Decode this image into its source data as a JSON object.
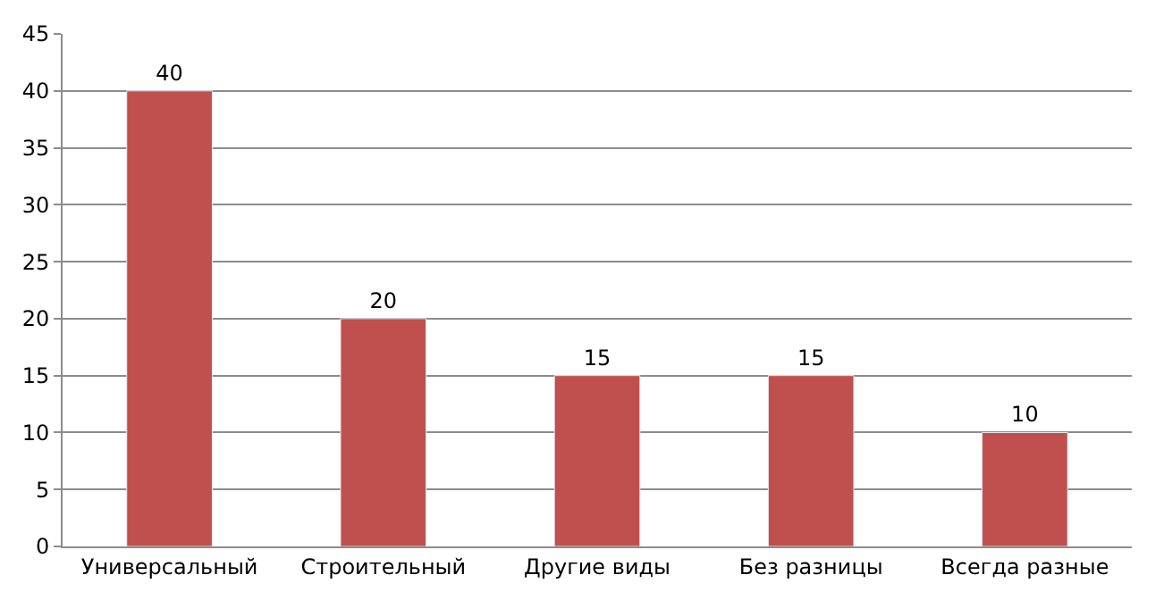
{
  "chart_data": {
    "type": "bar",
    "categories": [
      "Универсальный",
      "Строительный",
      "Другие виды",
      "Без разницы",
      "Всегда разные"
    ],
    "values": [
      40,
      20,
      15,
      15,
      10
    ],
    "color": "#c0504d",
    "ylim": [
      0,
      45
    ],
    "yticks": [
      0,
      5,
      10,
      15,
      20,
      25,
      30,
      35,
      40,
      45
    ],
    "grid": "y",
    "data_labels": true,
    "legend": false
  }
}
